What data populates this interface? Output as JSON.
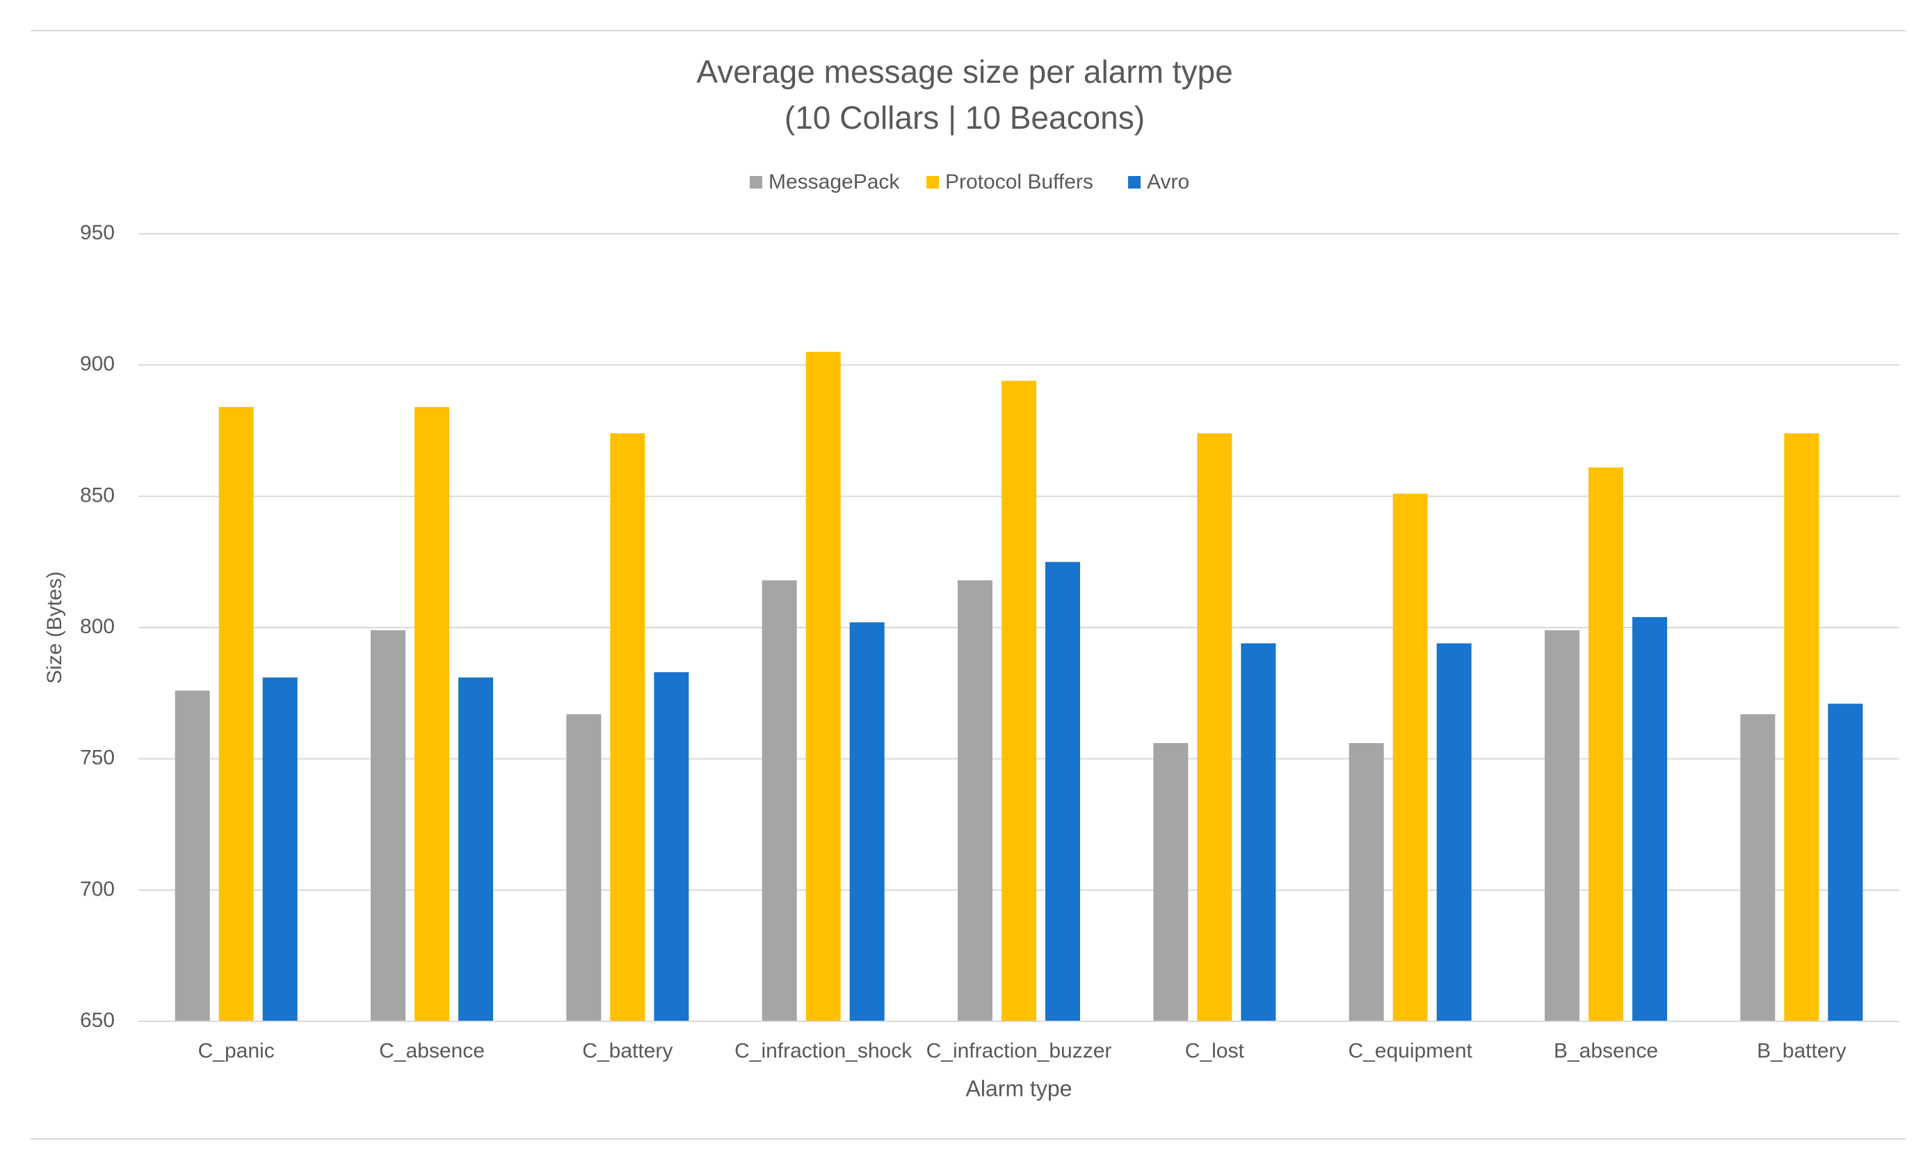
{
  "chart_data": {
    "type": "bar",
    "title": "Average message size per alarm type",
    "subtitle": "(10 Collars | 10 Beacons)",
    "x_label": "Alarm type",
    "y_label": "Size (Bytes)",
    "categories": [
      "C_panic",
      "C_absence",
      "C_battery",
      "C_infraction_shock",
      "C_infraction_buzzer",
      "C_lost",
      "C_equipment",
      "B_absence",
      "B_battery"
    ],
    "series": [
      {
        "name": "MessagePack",
        "color": "#a5a5a5",
        "values": [
          776,
          799,
          767,
          818,
          818,
          756,
          756,
          799,
          767
        ]
      },
      {
        "name": "Protocol Buffers",
        "color": "#ffc000",
        "values": [
          884,
          884,
          874,
          905,
          894,
          874,
          851,
          861,
          874
        ]
      },
      {
        "name": "Avro",
        "color": "#1874cd",
        "values": [
          781,
          781,
          783,
          802,
          825,
          794,
          794,
          804,
          771
        ]
      }
    ],
    "ylim": [
      650,
      950
    ],
    "yticks": [
      650,
      700,
      750,
      800,
      850,
      900,
      950
    ],
    "grid": true,
    "legend": "top"
  }
}
